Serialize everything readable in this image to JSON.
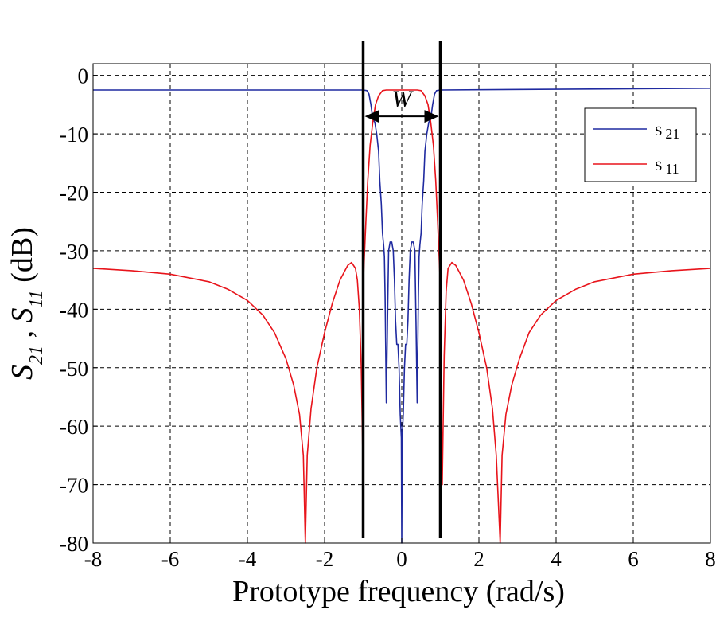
{
  "chart_data": {
    "type": "line",
    "xlabel": "Prototype frequency (rad/s)",
    "ylabel": {
      "parts": [
        {
          "text": "S",
          "style": "italic"
        },
        {
          "text": "21",
          "style": "italic-sub"
        },
        {
          "text": " , ",
          "style": "normal"
        },
        {
          "text": "S",
          "style": "italic"
        },
        {
          "text": "11",
          "style": "italic-sub"
        },
        {
          "text": " (dB)",
          "style": "normal"
        }
      ]
    },
    "xlim": [
      -8,
      8
    ],
    "ylim": [
      -80,
      2
    ],
    "x_ticks": [
      -8,
      -6,
      -4,
      -2,
      0,
      2,
      4,
      6,
      8
    ],
    "y_ticks": [
      0,
      -10,
      -20,
      -30,
      -40,
      -50,
      -60,
      -70,
      -80
    ],
    "x_tick_labels": [
      "-8",
      "-6",
      "-4",
      "-2",
      "0",
      "2",
      "4",
      "6",
      "8"
    ],
    "y_tick_labels": [
      "0",
      "-10",
      "-20",
      "-30",
      "-40",
      "-50",
      "-60",
      "-70",
      "-80"
    ],
    "grid": true,
    "legend_position": "top-right",
    "legend": [
      {
        "label": "s",
        "sub": "21",
        "color": "#1f2aa0"
      },
      {
        "label": "s",
        "sub": "11",
        "color": "#e8141b"
      }
    ],
    "series": [
      {
        "key": "s21",
        "color": "#1f2aa0",
        "points": [
          [
            -8,
            -2.5
          ],
          [
            -1.0,
            -2.5
          ],
          [
            -0.9,
            -2.6
          ],
          [
            -0.85,
            -3.2
          ],
          [
            -0.8,
            -5
          ],
          [
            -0.75,
            -7.5
          ],
          [
            -0.7,
            -8
          ],
          [
            -0.65,
            -10
          ],
          [
            -0.6,
            -13
          ],
          [
            -0.57,
            -18
          ],
          [
            -0.53,
            -22
          ],
          [
            -0.5,
            -27
          ],
          [
            -0.47,
            -29
          ],
          [
            -0.45,
            -31
          ],
          [
            -0.43,
            -38
          ],
          [
            -0.4,
            -56
          ],
          [
            -0.37,
            -42
          ],
          [
            -0.34,
            -30
          ],
          [
            -0.3,
            -28.5
          ],
          [
            -0.26,
            -28.5
          ],
          [
            -0.22,
            -30
          ],
          [
            -0.19,
            -35
          ],
          [
            -0.16,
            -42
          ],
          [
            -0.13,
            -46
          ],
          [
            -0.1,
            -46
          ],
          [
            -0.07,
            -50
          ],
          [
            -0.04,
            -58
          ],
          [
            -0.01,
            -62
          ],
          [
            0,
            -80
          ],
          [
            0.01,
            -62
          ],
          [
            0.04,
            -58
          ],
          [
            0.07,
            -50
          ],
          [
            0.1,
            -46
          ],
          [
            0.13,
            -46
          ],
          [
            0.16,
            -42
          ],
          [
            0.19,
            -35
          ],
          [
            0.22,
            -30
          ],
          [
            0.26,
            -28.5
          ],
          [
            0.3,
            -28.5
          ],
          [
            0.34,
            -30
          ],
          [
            0.37,
            -42
          ],
          [
            0.4,
            -56
          ],
          [
            0.43,
            -38
          ],
          [
            0.45,
            -31
          ],
          [
            0.47,
            -29
          ],
          [
            0.5,
            -27
          ],
          [
            0.53,
            -22
          ],
          [
            0.57,
            -18
          ],
          [
            0.6,
            -13
          ],
          [
            0.65,
            -10
          ],
          [
            0.7,
            -8
          ],
          [
            0.75,
            -7.5
          ],
          [
            0.8,
            -5
          ],
          [
            0.85,
            -3.2
          ],
          [
            0.9,
            -2.6
          ],
          [
            1.0,
            -2.5
          ],
          [
            8,
            -2.2
          ]
        ]
      },
      {
        "key": "s11",
        "color": "#e8141b",
        "points": [
          [
            -8,
            -33
          ],
          [
            -7,
            -33.4
          ],
          [
            -6,
            -34
          ],
          [
            -5,
            -35.3
          ],
          [
            -4.5,
            -36.6
          ],
          [
            -4,
            -38.5
          ],
          [
            -3.6,
            -41
          ],
          [
            -3.3,
            -44
          ],
          [
            -3,
            -48.5
          ],
          [
            -2.8,
            -53
          ],
          [
            -2.65,
            -58
          ],
          [
            -2.55,
            -65
          ],
          [
            -2.5,
            -80
          ],
          [
            -2.45,
            -65
          ],
          [
            -2.35,
            -57
          ],
          [
            -2.2,
            -50
          ],
          [
            -2.0,
            -44
          ],
          [
            -1.8,
            -39
          ],
          [
            -1.6,
            -35
          ],
          [
            -1.4,
            -32.5
          ],
          [
            -1.3,
            -32
          ],
          [
            -1.2,
            -33
          ],
          [
            -1.15,
            -35
          ],
          [
            -1.1,
            -40
          ],
          [
            -1.05,
            -50
          ],
          [
            -1.01,
            -65
          ],
          [
            -1.0,
            -36
          ],
          [
            -0.97,
            -31
          ],
          [
            -0.93,
            -25
          ],
          [
            -0.88,
            -18
          ],
          [
            -0.82,
            -12
          ],
          [
            -0.75,
            -8
          ],
          [
            -0.68,
            -5
          ],
          [
            -0.6,
            -3.5
          ],
          [
            -0.5,
            -2.6
          ],
          [
            -0.4,
            -2.5
          ],
          [
            0,
            -2.5
          ],
          [
            0.4,
            -2.5
          ],
          [
            0.5,
            -2.6
          ],
          [
            0.6,
            -3.5
          ],
          [
            0.68,
            -5
          ],
          [
            0.75,
            -8
          ],
          [
            0.82,
            -12
          ],
          [
            0.88,
            -18
          ],
          [
            0.93,
            -25
          ],
          [
            0.97,
            -31
          ],
          [
            1.0,
            -36
          ],
          [
            1.05,
            -70
          ],
          [
            1.1,
            -48
          ],
          [
            1.15,
            -37
          ],
          [
            1.2,
            -33
          ],
          [
            1.3,
            -32
          ],
          [
            1.4,
            -32.5
          ],
          [
            1.6,
            -35
          ],
          [
            1.8,
            -39
          ],
          [
            2.0,
            -44
          ],
          [
            2.2,
            -50
          ],
          [
            2.35,
            -57
          ],
          [
            2.45,
            -65
          ],
          [
            2.55,
            -80
          ],
          [
            2.6,
            -65
          ],
          [
            2.7,
            -58
          ],
          [
            2.85,
            -53
          ],
          [
            3.05,
            -48.5
          ],
          [
            3.3,
            -44
          ],
          [
            3.6,
            -41
          ],
          [
            4,
            -38.5
          ],
          [
            4.5,
            -36.6
          ],
          [
            5,
            -35.3
          ],
          [
            6,
            -34
          ],
          [
            7,
            -33.4
          ],
          [
            8,
            -33
          ]
        ]
      }
    ],
    "annotations": {
      "vertical_lines_x": [
        -1,
        1
      ],
      "width_label": "W",
      "width_arrow_y": -7
    }
  }
}
